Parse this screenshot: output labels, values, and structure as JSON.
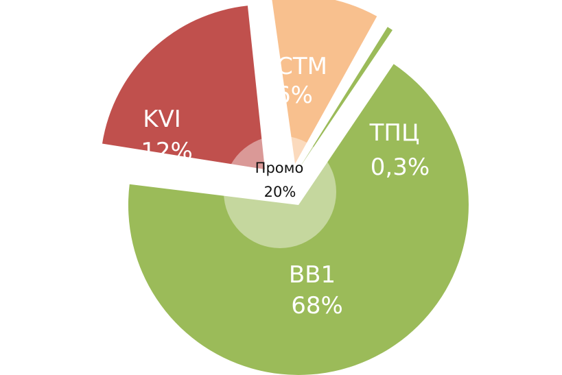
{
  "chart_data": {
    "type": "pie",
    "slices": [
      {
        "name": "СТМ",
        "label": "6%",
        "value": 6,
        "color": "#F8C08E"
      },
      {
        "name": "ТПЦ",
        "label": "0,3%",
        "value": 0.3,
        "color": "#9BBB59"
      },
      {
        "name": "BB1",
        "label": "68%",
        "value": 68,
        "color": "#9BBB59"
      },
      {
        "name": "KVI",
        "label": "12%",
        "value": 12,
        "color": "#C0504D"
      }
    ],
    "center": {
      "name": "Промо",
      "label": "20%",
      "value": 20
    }
  }
}
